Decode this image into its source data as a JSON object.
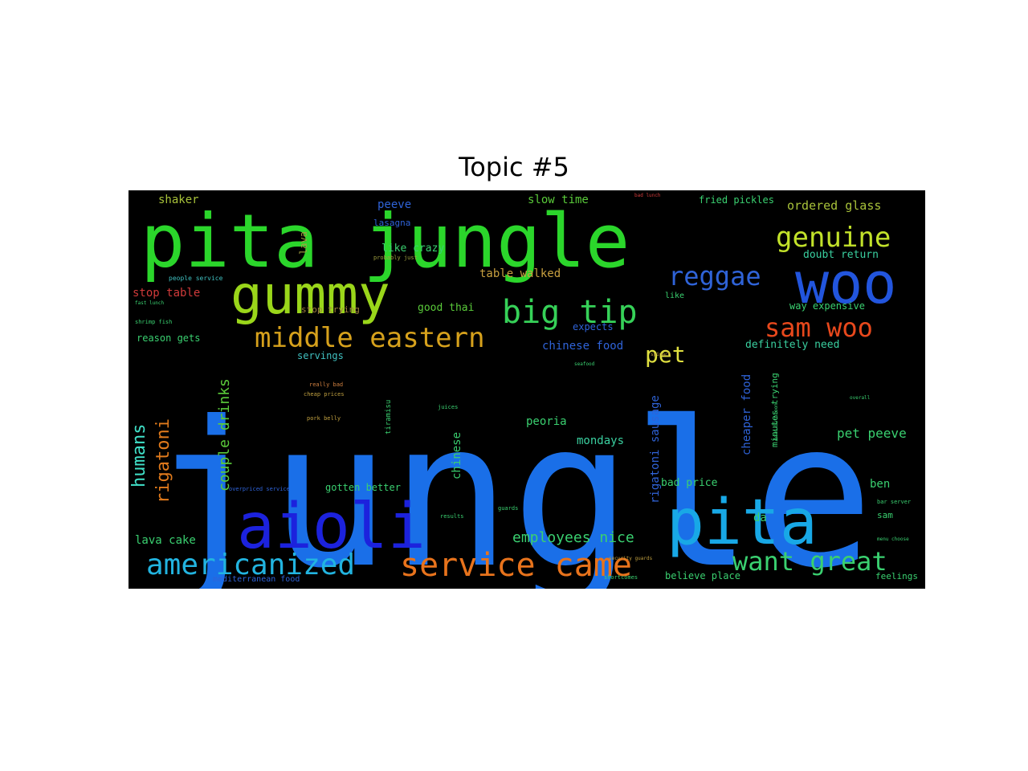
{
  "figure": {
    "title": "Topic #5"
  },
  "chart_data": {
    "type": "wordcloud",
    "title": "Topic #5",
    "background": "#000000",
    "words": [
      {
        "text": "jungle",
        "color": "#1a6fe8"
      },
      {
        "text": "pita jungle",
        "color": "#2bd62b"
      },
      {
        "text": "woo",
        "color": "#2255dd"
      },
      {
        "text": "gummy",
        "color": "#9ad61a"
      },
      {
        "text": "aioli",
        "color": "#1c22dd"
      },
      {
        "text": "pita",
        "color": "#18a8e6"
      },
      {
        "text": "genuine",
        "color": "#c2e22a"
      },
      {
        "text": "big tip",
        "color": "#36d158"
      },
      {
        "text": "middle eastern",
        "color": "#d6a11c"
      },
      {
        "text": "service came",
        "color": "#e8731c"
      },
      {
        "text": "americanized",
        "color": "#22b4e0"
      },
      {
        "text": "want great",
        "color": "#3ad070"
      },
      {
        "text": "sam woo",
        "color": "#e8481c"
      },
      {
        "text": "reggae",
        "color": "#2f63d8"
      },
      {
        "text": "pet",
        "color": "#e0e040"
      },
      {
        "text": "humans",
        "color": "#40e0c8"
      },
      {
        "text": "rigatoni",
        "color": "#e07a1c"
      },
      {
        "text": "couple drinks",
        "color": "#5acb3a"
      },
      {
        "text": "employees nice",
        "color": "#3ad070"
      },
      {
        "text": "pet peeve",
        "color": "#3ad070"
      },
      {
        "text": "rigatoni sausage",
        "color": "#2f63d8"
      },
      {
        "text": "cheaper food",
        "color": "#2f63d8"
      },
      {
        "text": "ordered glass",
        "color": "#a8c23a"
      },
      {
        "text": "doubt return",
        "color": "#3ad0a0"
      },
      {
        "text": "shaker",
        "color": "#a8c23a"
      },
      {
        "text": "peeve",
        "color": "#2f63d8"
      },
      {
        "text": "slow time",
        "color": "#5acb3a"
      },
      {
        "text": "fried pickles",
        "color": "#3ad070"
      },
      {
        "text": "lasagna",
        "color": "#2f63d8"
      },
      {
        "text": "like crazy",
        "color": "#3ad070"
      },
      {
        "text": "lava",
        "color": "#a0a040"
      },
      {
        "text": "table walked",
        "color": "#c8a040"
      },
      {
        "text": "stop table",
        "color": "#d03a3a"
      },
      {
        "text": "good thai",
        "color": "#5acb3a"
      },
      {
        "text": "stop trying",
        "color": "#a08040"
      },
      {
        "text": "reason gets",
        "color": "#3ad070"
      },
      {
        "text": "expects",
        "color": "#2f63d8"
      },
      {
        "text": "chinese food",
        "color": "#2f63d8"
      },
      {
        "text": "definitely need",
        "color": "#3ad0a0"
      },
      {
        "text": "way expensive",
        "color": "#3ad070"
      },
      {
        "text": "servings",
        "color": "#40c0c0"
      },
      {
        "text": "chinese",
        "color": "#3ad070"
      },
      {
        "text": "peoria",
        "color": "#3ad070"
      },
      {
        "text": "mondays",
        "color": "#3ad0a0"
      },
      {
        "text": "bad price",
        "color": "#3ad070"
      },
      {
        "text": "gotten better",
        "color": "#3ad070"
      },
      {
        "text": "lava cake",
        "color": "#3ad070"
      },
      {
        "text": "ben",
        "color": "#3ad070"
      },
      {
        "text": "da",
        "color": "#3ad070"
      },
      {
        "text": "believe place",
        "color": "#3ad070"
      },
      {
        "text": "sam",
        "color": "#3ad070"
      },
      {
        "text": "feelings",
        "color": "#3ad070"
      },
      {
        "text": "mediterranean food",
        "color": "#2f63d8"
      },
      {
        "text": "minutes trying",
        "color": "#3ad070"
      },
      {
        "text": "people service",
        "color": "#40c0c0"
      },
      {
        "text": "probably just",
        "color": "#a0a040"
      },
      {
        "text": "really bad",
        "color": "#d08040"
      },
      {
        "text": "cheap prices",
        "color": "#c0a040"
      },
      {
        "text": "pork belly",
        "color": "#c0a040"
      },
      {
        "text": "tiramisu",
        "color": "#3ad070"
      },
      {
        "text": "juices",
        "color": "#3ad070"
      },
      {
        "text": "shrimp fish",
        "color": "#3ad070"
      },
      {
        "text": "overpriced service",
        "color": "#2f63d8"
      },
      {
        "text": "bad lunch",
        "color": "#d03a3a"
      },
      {
        "text": "dead bathroom",
        "color": "#3ad070"
      },
      {
        "text": "results",
        "color": "#3ad070"
      },
      {
        "text": "guards",
        "color": "#3ad070"
      },
      {
        "text": "security guards",
        "color": "#c0a040"
      },
      {
        "text": "bar server",
        "color": "#3ad070"
      },
      {
        "text": "menu choose",
        "color": "#3ad070"
      },
      {
        "text": "shortcomes",
        "color": "#3ad070"
      },
      {
        "text": "overall",
        "color": "#3ad070"
      },
      {
        "text": "spinach",
        "color": "#c0a040"
      },
      {
        "text": "fast lunch",
        "color": "#3ad070"
      },
      {
        "text": "seafood",
        "color": "#3ad070"
      },
      {
        "text": "like",
        "color": "#3ad070"
      }
    ]
  }
}
